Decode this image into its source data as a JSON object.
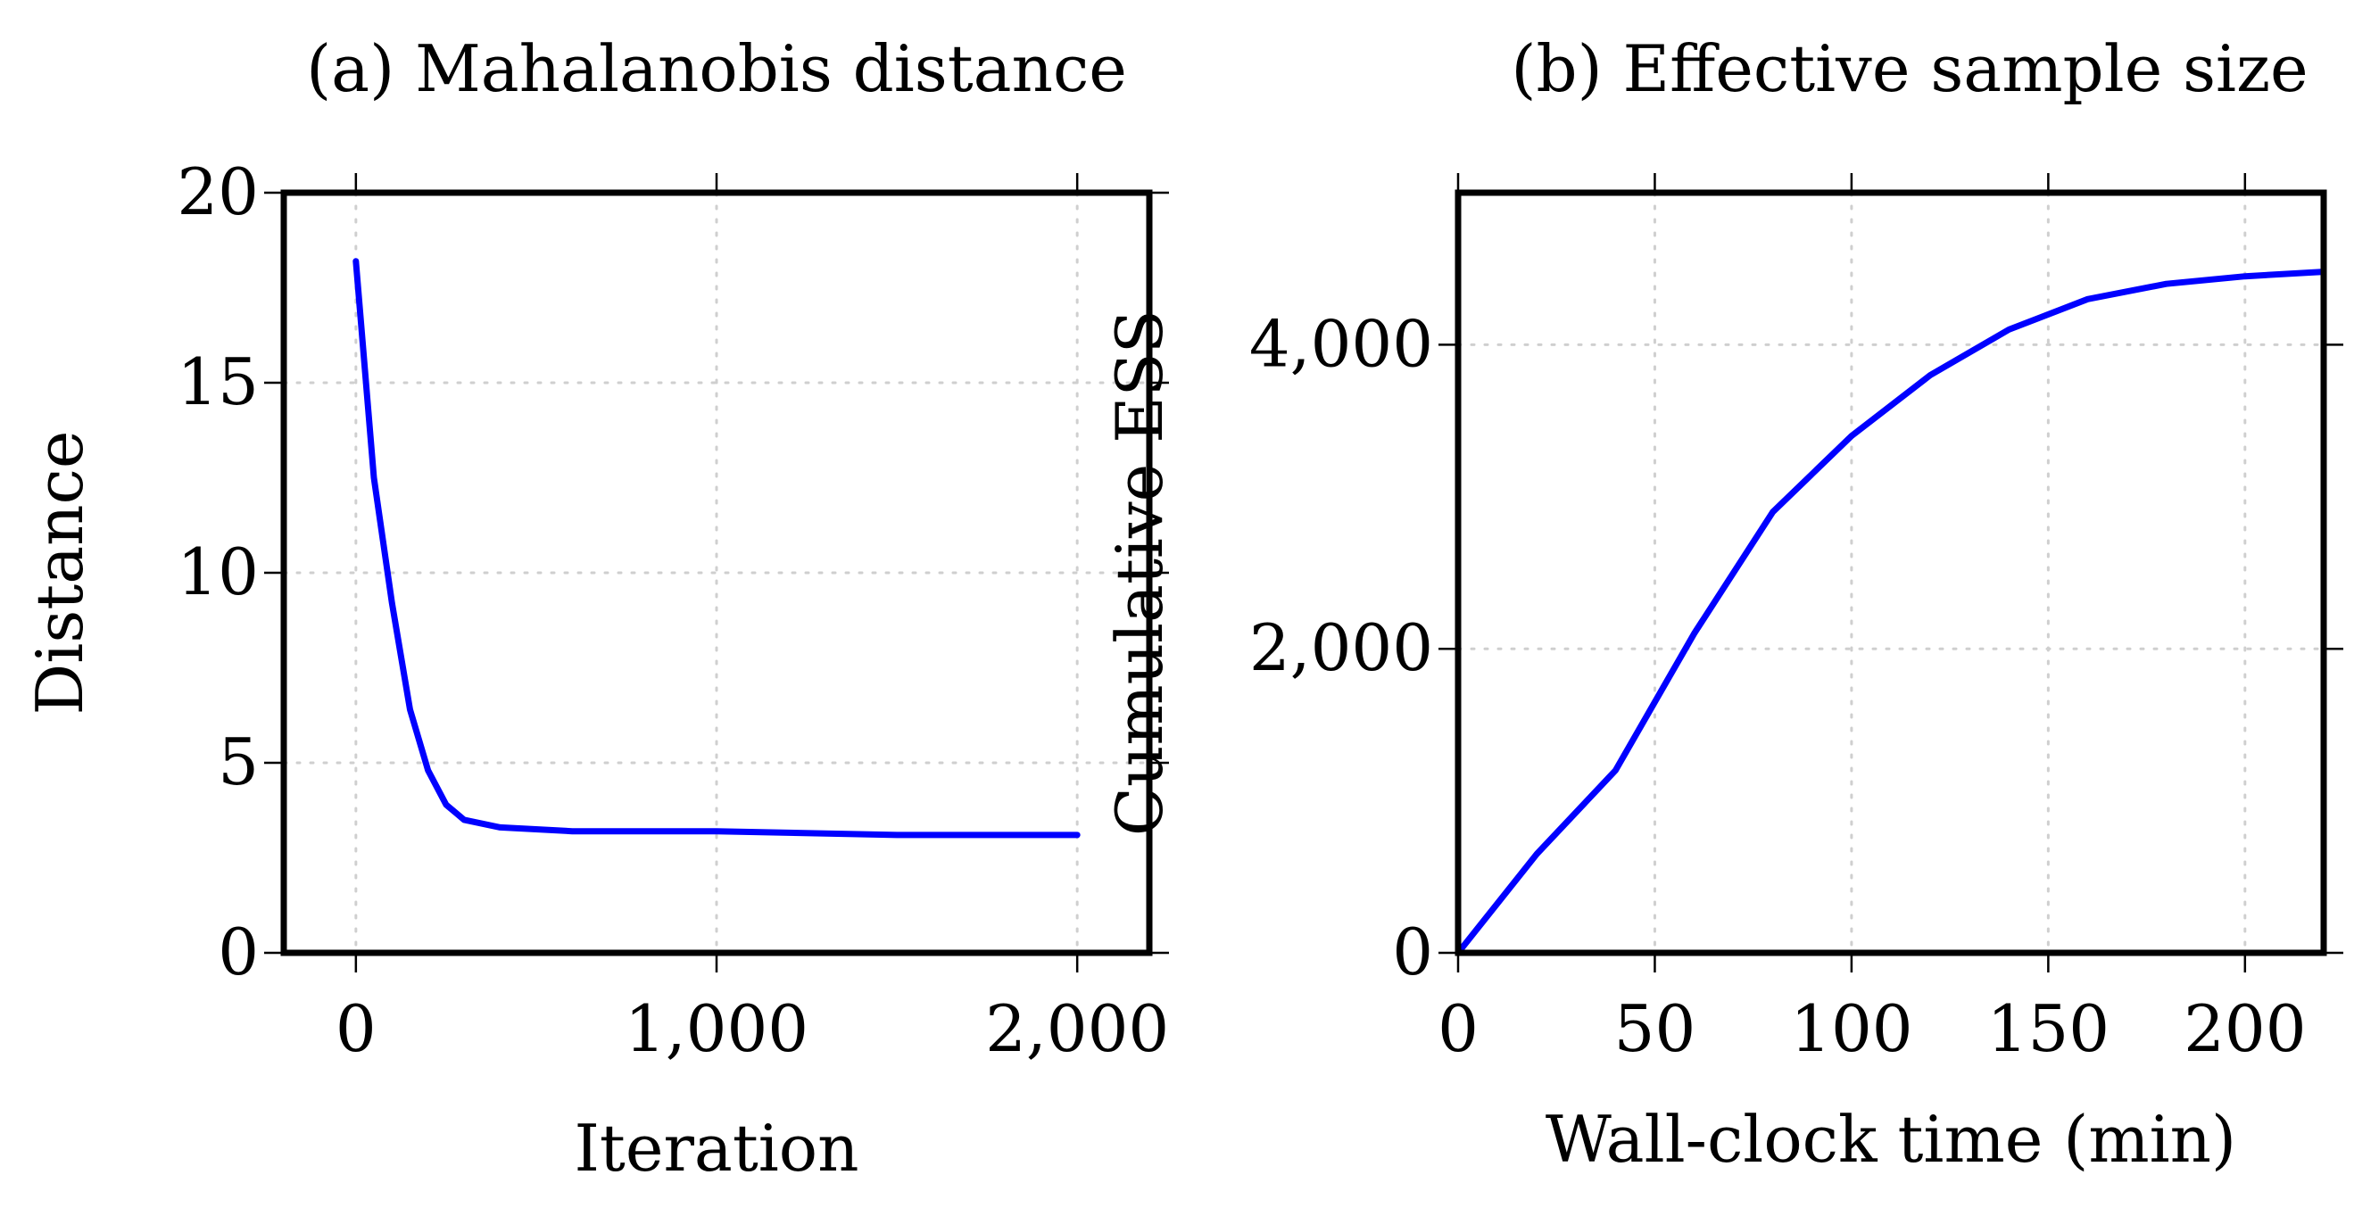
{
  "chart_data": [
    {
      "type": "line",
      "title": "(a) Mahalanobis distance",
      "xlabel": "Iteration",
      "ylabel": "Distance",
      "xlim": [
        -200,
        2200
      ],
      "ylim": [
        0,
        20
      ],
      "xticks": [
        0,
        1000,
        2000
      ],
      "xtick_labels": [
        "0",
        "1,000",
        "2,000"
      ],
      "yticks": [
        0,
        5,
        10,
        15,
        20
      ],
      "ytick_labels": [
        "0",
        "5",
        "10",
        "15",
        "20"
      ],
      "grid": true,
      "color": "#0000ff",
      "series": [
        {
          "name": "Distance",
          "x": [
            0,
            50,
            100,
            150,
            200,
            250,
            300,
            400,
            600,
            800,
            1000,
            1500,
            2000
          ],
          "y": [
            18.2,
            12.5,
            9.2,
            6.4,
            4.8,
            3.9,
            3.5,
            3.3,
            3.2,
            3.2,
            3.2,
            3.1,
            3.1
          ]
        }
      ]
    },
    {
      "type": "line",
      "title": "(b) Effective sample size",
      "xlabel": "Wall-clock time (min)",
      "ylabel": "Cumulative ESS",
      "xlim": [
        0,
        220
      ],
      "ylim": [
        0,
        5000
      ],
      "xticks": [
        0,
        50,
        100,
        150,
        200
      ],
      "xtick_labels": [
        "0",
        "50",
        "100",
        "150",
        "200"
      ],
      "yticks": [
        0,
        2000,
        4000
      ],
      "ytick_labels": [
        "0",
        "2,000",
        "4,000"
      ],
      "grid": true,
      "color": "#0000ff",
      "series": [
        {
          "name": "Cumulative ESS",
          "x": [
            0,
            20,
            40,
            60,
            80,
            100,
            120,
            140,
            160,
            180,
            200,
            220
          ],
          "y": [
            0,
            650,
            1200,
            2100,
            2900,
            3400,
            3800,
            4100,
            4300,
            4400,
            4450,
            4480
          ]
        }
      ]
    }
  ]
}
